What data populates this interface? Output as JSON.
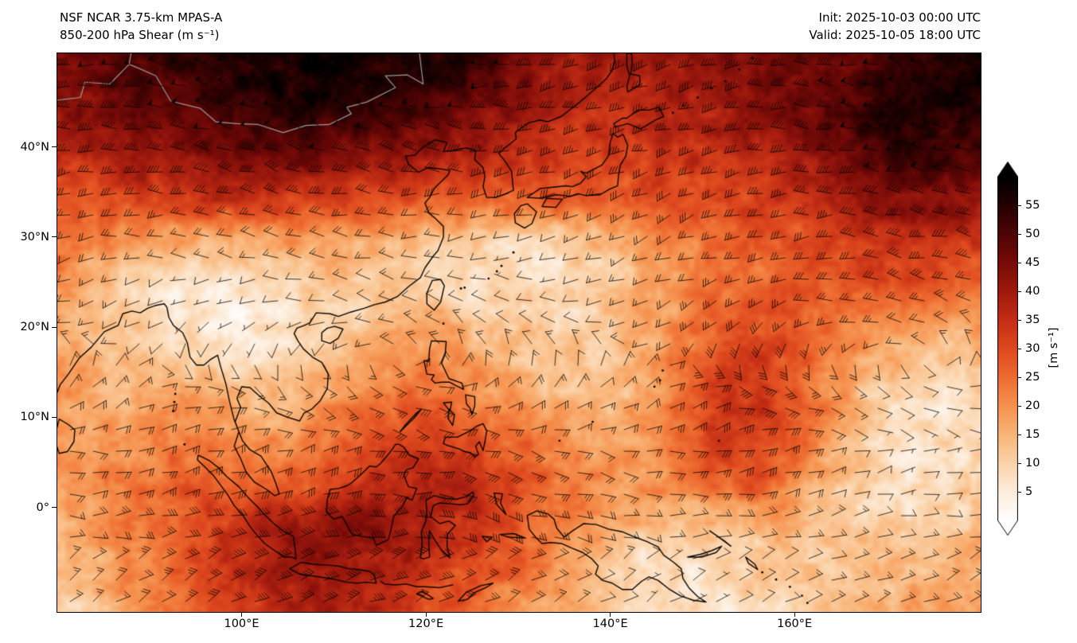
{
  "header": {
    "title": "NSF NCAR 3.75-km MPAS-A",
    "subtitle": "850-200 hPa Shear (m s⁻¹)",
    "init_time": "Init: 2025-10-03 00:00 UTC",
    "valid_time": "Valid: 2025-10-05 18:00 UTC"
  },
  "axes": {
    "x": {
      "ticks": [
        {
          "label": "100°E",
          "value": 100
        },
        {
          "label": "120°E",
          "value": 120
        },
        {
          "label": "140°E",
          "value": 140
        },
        {
          "label": "160°E",
          "value": 160
        }
      ]
    },
    "y": {
      "ticks": [
        {
          "label": "40°N",
          "value": 40
        },
        {
          "label": "30°N",
          "value": 30
        },
        {
          "label": "20°N",
          "value": 20
        },
        {
          "label": "10°N",
          "value": 10
        },
        {
          "label": "0°",
          "value": 0
        }
      ]
    }
  },
  "colorbar": {
    "unit": "[m s⁻¹]",
    "ticks": [
      5,
      10,
      15,
      20,
      25,
      30,
      35,
      40,
      45,
      50,
      55
    ],
    "vmin": 0,
    "vmax": 60,
    "extend": "both",
    "colormap": "gist_heat_r",
    "stops": [
      [
        0,
        "#ffffff"
      ],
      [
        5,
        "#fdeedd"
      ],
      [
        10,
        "#fbd4ab"
      ],
      [
        15,
        "#f9b579"
      ],
      [
        20,
        "#f6924f"
      ],
      [
        25,
        "#ee6c31"
      ],
      [
        30,
        "#df4a1f"
      ],
      [
        35,
        "#c42f15"
      ],
      [
        40,
        "#9f1a0e"
      ],
      [
        45,
        "#780b08"
      ],
      [
        50,
        "#4e0404"
      ],
      [
        55,
        "#260101"
      ],
      [
        60,
        "#000000"
      ]
    ]
  },
  "chart_data": {
    "type": "heatmap",
    "title": "NSF NCAR 3.75-km MPAS-A",
    "subtitle": "850-200 hPa Shear (m s⁻¹)",
    "init": "Init: 2025-10-03 00:00 UTC",
    "valid": "Valid: 2025-10-05 18:00 UTC",
    "units": "m s⁻¹",
    "extent": {
      "lon": [
        80,
        180.2
      ],
      "lat": [
        -11.6,
        50.4
      ]
    },
    "overlays": [
      "wind-barbs",
      "coastlines",
      "country-borders"
    ],
    "grid": {
      "lons": [
        80,
        84,
        88,
        92,
        96,
        100,
        104,
        108,
        112,
        116,
        120,
        124,
        128,
        132,
        136,
        140,
        144,
        148,
        152,
        156,
        160,
        164,
        168,
        172,
        176,
        180
      ],
      "lats": [
        50,
        46,
        42,
        38,
        34,
        30,
        26,
        22,
        18,
        14,
        10,
        6,
        2,
        -2,
        -6,
        -10
      ],
      "values": [
        [
          46,
          48,
          50,
          52,
          54,
          56,
          57,
          58,
          57,
          56,
          55,
          55,
          50,
          44,
          40,
          40,
          42,
          42,
          44,
          45,
          46,
          48,
          50,
          53,
          55,
          56
        ],
        [
          44,
          46,
          48,
          50,
          53,
          55,
          57,
          57,
          56,
          55,
          54,
          52,
          46,
          40,
          36,
          36,
          38,
          40,
          42,
          44,
          46,
          48,
          52,
          55,
          56,
          55
        ],
        [
          40,
          42,
          44,
          46,
          48,
          50,
          52,
          52,
          50,
          48,
          46,
          44,
          40,
          36,
          34,
          34,
          35,
          36,
          38,
          40,
          43,
          47,
          52,
          55,
          54,
          52
        ],
        [
          34,
          36,
          38,
          40,
          42,
          43,
          44,
          44,
          42,
          40,
          38,
          36,
          34,
          32,
          31,
          31,
          32,
          33,
          34,
          36,
          38,
          42,
          47,
          51,
          50,
          47
        ],
        [
          28,
          30,
          31,
          32,
          33,
          33,
          32,
          31,
          30,
          29,
          28,
          27,
          26,
          26,
          26,
          27,
          28,
          29,
          30,
          32,
          34,
          37,
          41,
          45,
          44,
          41
        ],
        [
          24,
          22,
          20,
          18,
          17,
          18,
          19,
          19,
          18,
          16,
          14,
          12,
          10,
          10,
          12,
          15,
          18,
          22,
          25,
          27,
          29,
          31,
          34,
          37,
          37,
          34
        ],
        [
          22,
          16,
          11,
          8,
          8,
          10,
          13,
          14,
          13,
          11,
          10,
          8,
          7,
          7,
          9,
          12,
          16,
          20,
          24,
          26,
          28,
          29,
          30,
          31,
          30,
          28
        ],
        [
          19,
          14,
          10,
          7,
          5,
          5,
          6,
          8,
          10,
          13,
          14,
          12,
          10,
          9,
          10,
          12,
          16,
          21,
          26,
          28,
          27,
          26,
          25,
          24,
          22,
          21
        ],
        [
          17,
          14,
          12,
          10,
          7,
          6,
          8,
          11,
          14,
          17,
          19,
          17,
          14,
          12,
          12,
          13,
          17,
          23,
          29,
          31,
          28,
          23,
          19,
          16,
          14,
          14
        ],
        [
          17,
          15,
          15,
          15,
          14,
          12,
          12,
          15,
          18,
          21,
          23,
          21,
          17,
          14,
          13,
          13,
          17,
          24,
          32,
          34,
          29,
          21,
          13,
          10,
          9,
          11
        ],
        [
          19,
          17,
          18,
          20,
          20,
          18,
          17,
          20,
          24,
          27,
          29,
          27,
          24,
          20,
          17,
          15,
          18,
          26,
          33,
          35,
          30,
          19,
          11,
          7,
          7,
          9
        ],
        [
          20,
          19,
          21,
          23,
          24,
          22,
          21,
          25,
          29,
          32,
          34,
          32,
          29,
          25,
          21,
          18,
          20,
          26,
          31,
          32,
          26,
          16,
          9,
          6,
          7,
          9
        ],
        [
          19,
          21,
          23,
          26,
          28,
          29,
          28,
          31,
          35,
          38,
          39,
          37,
          32,
          28,
          23,
          20,
          19,
          21,
          25,
          27,
          21,
          13,
          9,
          7,
          9,
          11
        ],
        [
          16,
          19,
          23,
          28,
          32,
          35,
          38,
          40,
          42,
          41,
          38,
          35,
          31,
          26,
          21,
          16,
          13,
          12,
          13,
          15,
          15,
          13,
          11,
          9,
          11,
          13
        ],
        [
          13,
          16,
          21,
          26,
          31,
          36,
          40,
          42,
          41,
          39,
          36,
          31,
          28,
          23,
          18,
          13,
          9,
          7,
          9,
          11,
          13,
          13,
          13,
          13,
          15,
          16
        ],
        [
          11,
          13,
          19,
          23,
          29,
          33,
          36,
          38,
          37,
          35,
          31,
          27,
          23,
          19,
          15,
          11,
          7,
          6,
          7,
          9,
          11,
          13,
          15,
          16,
          17,
          19
        ]
      ]
    }
  }
}
